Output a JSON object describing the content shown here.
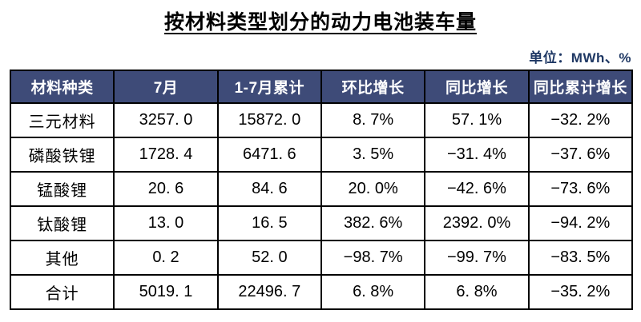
{
  "page": {
    "title": "按材料类型划分的动力电池装车量",
    "unit_label": "单位：MWh、%"
  },
  "colors": {
    "header_bg": "#3E4B78",
    "header_text": "#FFFFFF",
    "unit_text": "#1F3864",
    "border": "#000000"
  },
  "chart_data": {
    "type": "table",
    "title": "按材料类型划分的动力电池装车量",
    "unit": "MWh、%",
    "headers": [
      "材料种类",
      "7月",
      "1-7月累计",
      "环比增长",
      "同比增长",
      "同比累计增长"
    ],
    "rows": [
      [
        "三元材料",
        "3257. 0",
        "15872. 0",
        "8. 7%",
        "57. 1%",
        "−32. 2%"
      ],
      [
        "磷酸铁锂",
        "1728. 4",
        "6471. 6",
        "3. 5%",
        "−31. 4%",
        "−37. 6%"
      ],
      [
        "锰酸锂",
        "20. 6",
        "84. 6",
        "20. 0%",
        "−42. 6%",
        "−73. 6%"
      ],
      [
        "钛酸锂",
        "13. 0",
        "16. 5",
        "382. 6%",
        "2392. 0%",
        "−94. 2%"
      ],
      [
        "其他",
        "0. 2",
        "52. 0",
        "−98. 7%",
        "−99. 7%",
        "−83. 5%"
      ],
      [
        "合计",
        "5019. 1",
        "22496. 7",
        "6. 8%",
        "6. 8%",
        "−35. 2%"
      ]
    ]
  }
}
